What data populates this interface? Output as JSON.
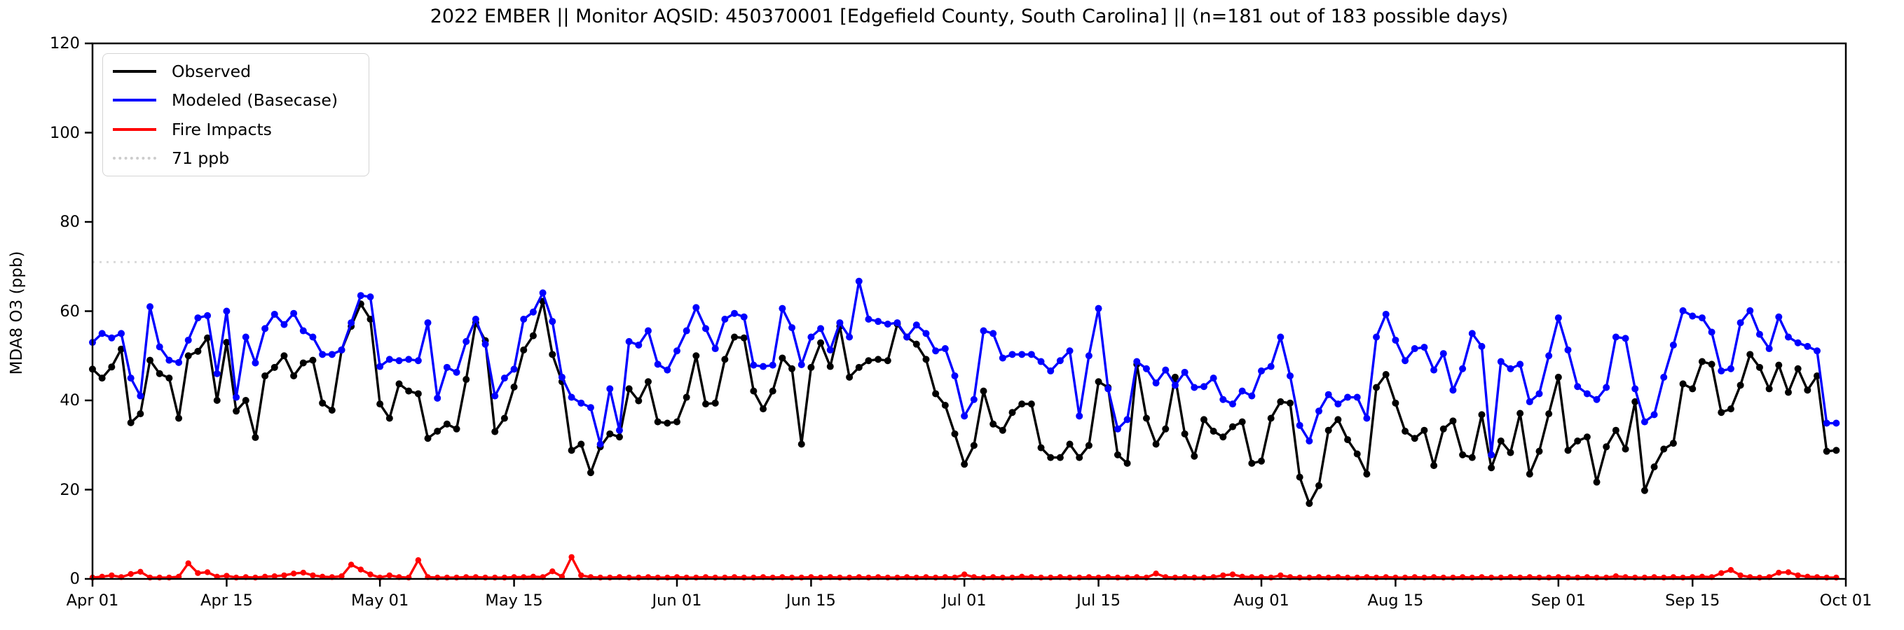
{
  "chart_data": {
    "type": "line",
    "title": "2022 EMBER || Monitor AQSID: 450370001 [Edgefield County, South Carolina] || (n=181 out of 183 possible days)",
    "ylabel": "MDA8 O3 (ppb)",
    "ylim": [
      0,
      120
    ],
    "yticks": [
      0,
      20,
      40,
      60,
      80,
      100,
      120
    ],
    "xlim_days": [
      0,
      183
    ],
    "xtick_days": [
      0,
      14,
      30,
      44,
      61,
      75,
      91,
      105,
      122,
      136,
      153,
      167,
      183
    ],
    "xtick_labels": [
      "Apr 01",
      "Apr 15",
      "May 01",
      "May 15",
      "Jun 01",
      "Jun 15",
      "Jul 01",
      "Jul 15",
      "Aug 01",
      "Aug 15",
      "Sep 01",
      "Sep 15",
      "Oct 01"
    ],
    "grid": false,
    "legend_position": "upper left",
    "threshold": {
      "label": "71 ppb",
      "value": 71,
      "color": "#d9d9d9",
      "line_style": "dotted"
    },
    "series": [
      {
        "name": "Observed",
        "color": "#000000",
        "values": [
          47,
          45,
          47.5,
          51.5,
          35,
          37,
          49,
          46,
          45,
          36,
          50,
          51,
          54,
          40,
          53,
          37.6,
          40,
          31.7,
          45.5,
          47.4,
          50,
          45.5,
          48.4,
          49,
          39.4,
          37.8,
          51.3,
          56.6,
          61.6,
          58.2,
          39.2,
          36,
          43.7,
          42.1,
          41.5,
          31.5,
          33.1,
          34.7,
          33.6,
          44.7,
          57.4,
          53.4,
          33,
          36,
          43,
          51.3,
          54.5,
          62.2,
          50.3,
          44.2,
          28.8,
          30.2,
          23.8,
          29.6,
          32.5,
          31.8,
          42.6,
          39.9,
          44.2,
          35.2,
          34.9,
          35.2,
          40.7,
          50.0,
          39.2,
          39.4,
          49.2,
          54.2,
          54.0,
          42.1,
          38.1,
          42.1,
          49.5,
          47.1,
          30.2,
          47.4,
          52.9,
          47.6,
          56.6,
          45.2,
          47.4,
          48.9,
          49.2,
          48.9,
          57.1,
          54.2,
          52.6,
          49.2,
          41.5,
          38.9,
          32.5,
          25.7,
          29.9,
          42.1,
          34.7,
          33.3,
          37.3,
          39.2,
          39.2,
          29.4,
          27.2,
          27.2,
          30.2,
          27.2,
          29.9,
          44.2,
          42.9,
          27.8,
          25.9,
          48.1,
          36.0,
          30.2,
          33.6,
          45.2,
          32.5,
          27.5,
          35.7,
          33.1,
          31.8,
          34.1,
          35.2,
          25.9,
          26.4,
          36.0,
          39.7,
          39.4,
          22.8,
          16.9,
          20.9,
          33.3,
          35.7,
          31.2,
          28.0,
          23.5,
          42.9,
          45.8,
          39.4,
          33.1,
          31.5,
          33.3,
          25.4,
          33.6,
          35.4,
          27.8,
          27.2,
          36.8,
          24.9,
          30.9,
          28.3,
          37.1,
          23.5,
          28.6,
          37.0,
          45.2,
          28.8,
          30.9,
          31.8,
          21.7,
          29.6,
          33.3,
          29.1,
          39.7,
          19.8,
          25.1,
          29.1,
          30.4,
          43.7,
          42.6,
          48.7,
          48.1,
          37.3,
          38.1,
          43.4,
          50.3,
          47.4,
          42.6,
          47.9,
          41.8,
          47.1,
          42.3,
          45.5,
          28.6,
          28.8
        ]
      },
      {
        "name": "Modeled (Basecase)",
        "color": "#0000ff",
        "values": [
          53,
          55,
          54,
          55,
          45,
          41,
          61,
          52,
          49,
          48.5,
          53.5,
          58.5,
          59,
          46,
          60,
          40.7,
          54.2,
          48.4,
          56.1,
          59.3,
          57,
          59.5,
          55.6,
          54.2,
          50.3,
          50.3,
          51.3,
          57.4,
          63.5,
          63.2,
          47.6,
          49.2,
          48.9,
          49.2,
          48.9,
          57.4,
          40.5,
          47.4,
          46.3,
          53.2,
          58.2,
          52.6,
          41,
          45,
          47,
          58.2,
          59.8,
          64.1,
          57.7,
          45.2,
          40.7,
          39.4,
          38.4,
          30.2,
          42.6,
          33.3,
          53.2,
          52.4,
          55.6,
          48.1,
          46.8,
          51.1,
          55.6,
          60.8,
          56.1,
          51.6,
          58.2,
          59.5,
          58.7,
          47.9,
          47.6,
          47.9,
          60.6,
          56.3,
          48.0,
          54.2,
          56.1,
          51.3,
          57.4,
          54.2,
          66.7,
          58.2,
          57.7,
          57.1,
          57.4,
          54.2,
          56.9,
          55.0,
          51.1,
          51.6,
          45.5,
          36.5,
          40.2,
          55.6,
          55.0,
          49.5,
          50.3,
          50.3,
          50.3,
          48.7,
          46.6,
          48.9,
          51.1,
          36.5,
          50.0,
          60.6,
          42.6,
          33.6,
          35.7,
          48.7,
          47.1,
          43.9,
          46.8,
          43.4,
          46.3,
          42.9,
          43.1,
          45.0,
          40.2,
          39.2,
          42.1,
          41.0,
          46.6,
          47.6,
          54.2,
          45.5,
          34.4,
          30.9,
          37.6,
          41.3,
          39.2,
          40.7,
          40.7,
          36.0,
          54.2,
          59.3,
          53.5,
          48.9,
          51.6,
          51.9,
          46.8,
          50.5,
          42.3,
          47.1,
          55.0,
          52.1,
          27.8,
          48.7,
          47.1,
          48.1,
          39.7,
          41.5,
          50.0,
          58.5,
          51.3,
          43.1,
          41.5,
          40.2,
          42.9,
          54.2,
          53.9,
          42.6,
          35.2,
          36.8,
          45.2,
          52.4,
          60.1,
          58.9,
          58.5,
          55.3,
          46.6,
          47.1,
          57.4,
          60.1,
          54.8,
          51.6,
          58.7,
          54.2,
          52.9,
          52.1,
          51.1,
          34.9,
          34.9
        ]
      },
      {
        "name": "Fire Impacts",
        "color": "#ff0000",
        "values": [
          0.3,
          0.5,
          0.8,
          0.4,
          1.1,
          1.6,
          0.3,
          0.3,
          0.3,
          0.5,
          3.5,
          1.3,
          1.5,
          0.5,
          0.7,
          0.3,
          0.4,
          0.3,
          0.5,
          0.6,
          0.8,
          1.2,
          1.4,
          0.8,
          0.5,
          0.4,
          0.6,
          3.2,
          2.1,
          1.0,
          0.3,
          0.8,
          0.4,
          0.3,
          4.2,
          0.4,
          0.3,
          0.3,
          0.3,
          0.4,
          0.4,
          0.3,
          0.3,
          0.3,
          0.4,
          0.4,
          0.5,
          0.4,
          1.7,
          0.5,
          4.9,
          0.8,
          0.4,
          0.3,
          0.3,
          0.4,
          0.3,
          0.3,
          0.4,
          0.3,
          0.3,
          0.4,
          0.3,
          0.3,
          0.4,
          0.3,
          0.3,
          0.4,
          0.3,
          0.3,
          0.4,
          0.3,
          0.4,
          0.3,
          0.3,
          0.4,
          0.3,
          0.4,
          0.3,
          0.3,
          0.4,
          0.3,
          0.4,
          0.3,
          0.3,
          0.4,
          0.3,
          0.4,
          0.3,
          0.4,
          0.3,
          1.0,
          0.4,
          0.3,
          0.4,
          0.3,
          0.3,
          0.5,
          0.4,
          0.3,
          0.3,
          0.4,
          0.3,
          0.3,
          0.4,
          0.3,
          0.4,
          0.3,
          0.3,
          0.4,
          0.3,
          1.2,
          0.4,
          0.3,
          0.4,
          0.3,
          0.3,
          0.4,
          0.8,
          1.0,
          0.5,
          0.4,
          0.4,
          0.3,
          0.8,
          0.4,
          0.3,
          0.3,
          0.4,
          0.3,
          0.4,
          0.3,
          0.3,
          0.4,
          0.3,
          0.4,
          0.3,
          0.3,
          0.4,
          0.3,
          0.4,
          0.3,
          0.3,
          0.4,
          0.3,
          0.4,
          0.3,
          0.3,
          0.4,
          0.3,
          0.4,
          0.3,
          0.3,
          0.4,
          0.3,
          0.3,
          0.4,
          0.3,
          0.3,
          0.6,
          0.4,
          0.3,
          0.3,
          0.4,
          0.3,
          0.4,
          0.3,
          0.4,
          0.5,
          0.4,
          1.3,
          2.0,
          0.8,
          0.4,
          0.3,
          0.4,
          1.4,
          1.5,
          0.8,
          0.5,
          0.4,
          0.3,
          0.3
        ]
      }
    ]
  }
}
